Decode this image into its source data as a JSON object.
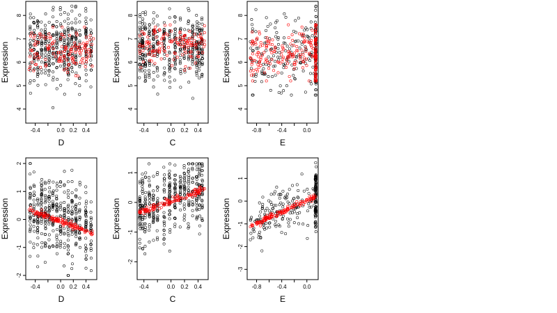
{
  "chart_data": [
    {
      "type": "scatter",
      "xlabel": "D",
      "ylabel": "Expression",
      "xlim": [
        -0.55,
        0.57
      ],
      "ylim": [
        3.4,
        8.6
      ],
      "xticks": [
        -0.4,
        -0.2,
        0.0,
        0.2,
        0.4
      ],
      "xticklabels": [
        "-0.4",
        "",
        "0.0",
        "0.2",
        "0.4"
      ],
      "yticks": [
        4,
        5,
        6,
        7,
        8
      ],
      "yticklabels": [
        "4",
        "5",
        "6",
        "7",
        "8"
      ],
      "observed": {
        "color": "#000000",
        "n": 420,
        "x_levels": [
          -0.48,
          -0.42,
          -0.36,
          -0.3,
          -0.24,
          -0.18,
          -0.12,
          -0.06,
          0.0,
          0.06,
          0.12,
          0.18,
          0.24,
          0.3,
          0.4,
          0.48
        ],
        "y_center": 6.6,
        "y_spread": 0.75,
        "y_range": [
          3.6,
          8.4
        ]
      },
      "fitted": {
        "color": "#ff0000",
        "n": 140,
        "x_range": [
          -0.5,
          0.52
        ],
        "y_center": 6.5,
        "y_spread": 0.45,
        "y_range": [
          5.2,
          7.5
        ]
      }
    },
    {
      "type": "scatter",
      "xlabel": "C",
      "ylabel": "Expression",
      "xlim": [
        -0.5,
        0.55
      ],
      "ylim": [
        3.4,
        8.6
      ],
      "xticks": [
        -0.4,
        -0.2,
        0.0,
        0.2,
        0.4
      ],
      "xticklabels": [
        "-0.4",
        "",
        "0.0",
        "0.2",
        "0.4"
      ],
      "yticks": [
        4,
        5,
        6,
        7,
        8
      ],
      "yticklabels": [
        "4",
        "5",
        "6",
        "7",
        "8"
      ],
      "observed": {
        "color": "#000000",
        "n": 420,
        "x_levels": [
          -0.46,
          -0.42,
          -0.38,
          -0.32,
          -0.26,
          -0.2,
          -0.1,
          -0.02,
          0.06,
          0.14,
          0.2,
          0.26,
          0.32,
          0.38,
          0.42,
          0.46
        ],
        "y_center": 6.6,
        "y_spread": 0.75,
        "y_range": [
          3.6,
          8.3
        ]
      },
      "fitted": {
        "color": "#ff0000",
        "n": 140,
        "x_range": [
          -0.47,
          0.5
        ],
        "y_center": 6.7,
        "y_spread": 0.4,
        "y_range": [
          5.6,
          7.6
        ]
      }
    },
    {
      "type": "scatter",
      "xlabel": "E",
      "ylabel": "Expression",
      "xlim": [
        -0.95,
        0.18
      ],
      "ylim": [
        3.4,
        8.6
      ],
      "xticks": [
        -0.8,
        -0.6,
        -0.4,
        -0.2,
        0.0
      ],
      "xticklabels": [
        "-0.8",
        "",
        "-0.4",
        "",
        "0.0"
      ],
      "yticks": [
        4,
        5,
        6,
        7,
        8
      ],
      "yticklabels": [
        "4",
        "5",
        "6",
        "7",
        "8"
      ],
      "observed": {
        "color": "#000000",
        "n": 160,
        "x_range": [
          -0.9,
          0.12
        ],
        "y_center": 6.4,
        "y_spread": 0.8,
        "y_range": [
          4.6,
          8.4
        ],
        "dense_x": 0.14,
        "dense_n": 90
      },
      "fitted": {
        "color": "#ff0000",
        "n": 150,
        "x_range": [
          -0.9,
          0.1
        ],
        "y_center": 6.3,
        "y_spread": 0.55,
        "y_range": [
          5.2,
          7.6
        ],
        "dense_x": 0.14,
        "dense_n": 70
      }
    },
    {
      "type": "scatter",
      "xlabel": "D",
      "ylabel": "Expression",
      "xlim": [
        -0.55,
        0.57
      ],
      "ylim": [
        -2.15,
        2.2
      ],
      "xticks": [
        -0.4,
        -0.2,
        0.0,
        0.2,
        0.4
      ],
      "xticklabels": [
        "-0.4",
        "",
        "0.0",
        "0.2",
        "0.4"
      ],
      "yticks": [
        -2,
        -1,
        0,
        1,
        2
      ],
      "yticklabels": [
        "-2",
        "-1",
        "0",
        "1",
        "2"
      ],
      "observed": {
        "color": "#000000",
        "n": 420,
        "x_levels": [
          -0.48,
          -0.42,
          -0.36,
          -0.3,
          -0.24,
          -0.18,
          -0.12,
          -0.06,
          0.0,
          0.06,
          0.12,
          0.18,
          0.24,
          0.3,
          0.4,
          0.48
        ],
        "y_intercept": 0.05,
        "y_slope": -0.6,
        "y_spread": 0.65,
        "y_range": [
          -2.0,
          2.0
        ]
      },
      "fitted": {
        "color": "#ff0000",
        "x_range": [
          -0.5,
          0.52
        ],
        "y_range": [
          0.35,
          -0.5
        ],
        "n": 120
      }
    },
    {
      "type": "scatter",
      "xlabel": "C",
      "ylabel": "Expression",
      "xlim": [
        -0.5,
        0.55
      ],
      "ylim": [
        -2.6,
        1.5
      ],
      "xticks": [
        -0.4,
        -0.2,
        0.0,
        0.2,
        0.4
      ],
      "xticklabels": [
        "-0.4",
        "",
        "0.0",
        "0.2",
        "0.4"
      ],
      "yticks": [
        -2,
        -1,
        0,
        1
      ],
      "yticklabels": [
        "-2",
        "-1",
        "0",
        "1"
      ],
      "observed": {
        "color": "#000000",
        "n": 420,
        "x_levels": [
          -0.46,
          -0.42,
          -0.38,
          -0.32,
          -0.26,
          -0.2,
          -0.1,
          -0.02,
          0.06,
          0.14,
          0.2,
          0.26,
          0.32,
          0.38,
          0.42,
          0.46
        ],
        "y_intercept": 0.05,
        "y_slope": 0.85,
        "y_spread": 0.6,
        "y_range": [
          -2.4,
          1.3
        ]
      },
      "fitted": {
        "color": "#ff0000",
        "x_range": [
          -0.47,
          0.5
        ],
        "y_range": [
          -0.35,
          0.45
        ],
        "n": 120
      }
    },
    {
      "type": "scatter",
      "xlabel": "E",
      "ylabel": "Expression",
      "xlim": [
        -0.95,
        0.18
      ],
      "ylim": [
        -3.45,
        1.9
      ],
      "xticks": [
        -0.8,
        -0.6,
        -0.4,
        -0.2,
        0.0
      ],
      "xticklabels": [
        "-0.8",
        "",
        "-0.4",
        "",
        "0.0"
      ],
      "yticks": [
        -3,
        -2,
        -1,
        0,
        1
      ],
      "yticklabels": [
        "-3",
        "-2",
        "-1",
        "0",
        "1"
      ],
      "observed": {
        "color": "#000000",
        "n": 150,
        "x_range": [
          -0.9,
          0.12
        ],
        "y_intercept": 0.05,
        "y_slope": 1.2,
        "y_spread": 0.55,
        "y_range": [
          -3.3,
          1.7
        ],
        "dense_x": 0.14,
        "dense_n": 100
      },
      "fitted": {
        "color": "#ff0000",
        "x_range": [
          -0.9,
          0.14
        ],
        "y_range": [
          -1.1,
          0.2
        ],
        "n": 130
      }
    }
  ]
}
